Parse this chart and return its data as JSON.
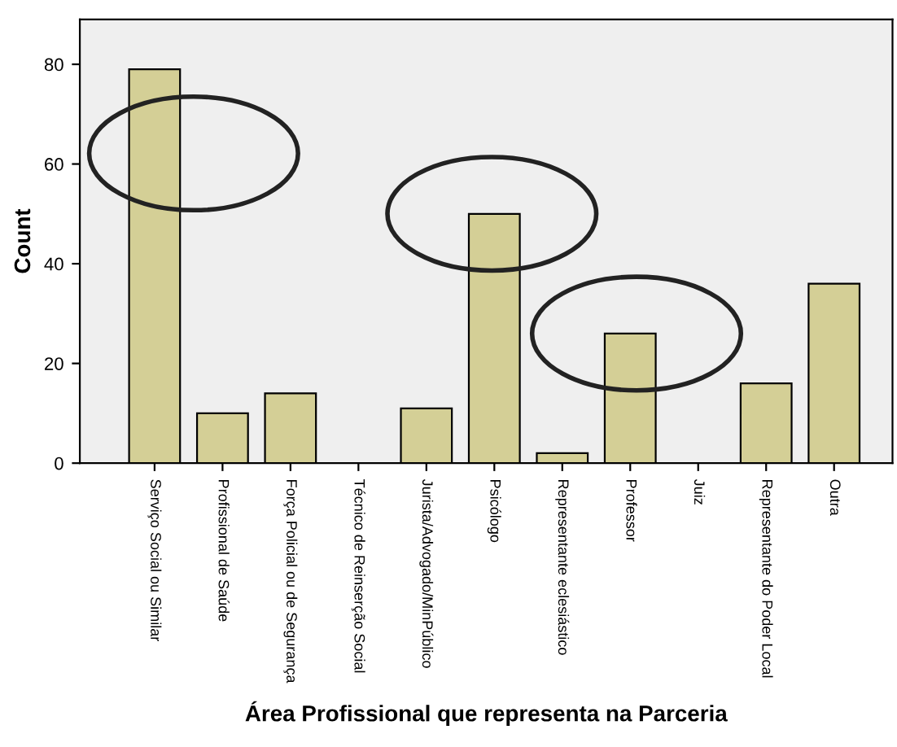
{
  "chart_data": {
    "type": "bar",
    "xlabel": "Área Profissional que representa na Parceria",
    "ylabel": "Count",
    "categories": [
      "Serviço Social ou Similar",
      "Profissional de Saúde",
      "Força Policial ou de Segurança",
      "Técnico de Reinserção Social",
      "Jurista/Advogado/MinPúblico",
      "Psicólogo",
      "Representante eclesiástico",
      "Professor",
      "Juiz",
      "Representante do Poder Local",
      "Outra"
    ],
    "values": [
      79,
      10,
      14,
      0,
      11,
      50,
      2,
      26,
      0,
      16,
      36
    ],
    "color": "#d4cf96",
    "ylim": [
      0,
      89
    ],
    "yticks": [
      0,
      20,
      40,
      60,
      80
    ],
    "grid": false,
    "legend": false
  }
}
